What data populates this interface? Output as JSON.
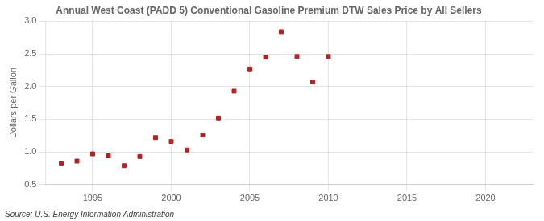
{
  "chart_data": {
    "type": "scatter",
    "title": "Annual West Coast (PADD 5) Conventional Gasoline Premium DTW Sales Price by All Sellers",
    "ylabel": "Dollars per Gallon",
    "annotations": [
      "Source: U.S. Energy Information Administration"
    ],
    "x": [
      1993,
      1994,
      1995,
      1996,
      1997,
      1998,
      1999,
      2000,
      2001,
      2002,
      2003,
      2004,
      2005,
      2006,
      2007,
      2008,
      2009,
      2010
    ],
    "values": [
      0.83,
      0.86,
      0.97,
      0.94,
      0.79,
      0.93,
      1.22,
      1.16,
      1.03,
      1.26,
      1.52,
      1.93,
      2.27,
      2.45,
      2.84,
      2.46,
      2.07,
      2.46
    ],
    "color": "#b22222",
    "marker": "square",
    "xlim": [
      1992,
      2023
    ],
    "xticks": [
      1995,
      2000,
      2005,
      2010,
      2015,
      2020
    ],
    "ylim": [
      0.5,
      3.0
    ],
    "yticks": [
      0.5,
      {
        "value": 1.0,
        "label": "1.0"
      },
      1.5,
      {
        "value": 2.0,
        "label": "2.0"
      },
      2.5,
      {
        "value": 3.0,
        "label": "3.0"
      }
    ],
    "grid": true
  }
}
